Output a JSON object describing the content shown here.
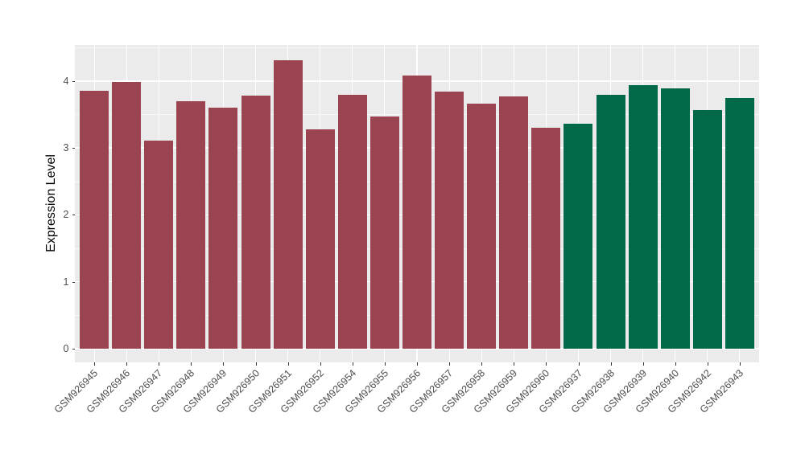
{
  "chart_data": {
    "type": "bar",
    "title": "",
    "xlabel": "",
    "ylabel": "Expression Level",
    "categories": [
      "GSM926945",
      "GSM926946",
      "GSM926947",
      "GSM926948",
      "GSM926949",
      "GSM926950",
      "GSM926951",
      "GSM926952",
      "GSM926954",
      "GSM926955",
      "GSM926956",
      "GSM926957",
      "GSM926958",
      "GSM926959",
      "GSM926960",
      "GSM926937",
      "GSM926938",
      "GSM926939",
      "GSM926940",
      "GSM926942",
      "GSM926943"
    ],
    "values": [
      3.85,
      3.98,
      3.11,
      3.7,
      3.6,
      3.78,
      4.31,
      3.28,
      3.79,
      3.47,
      4.08,
      3.84,
      3.66,
      3.77,
      3.3,
      3.36,
      3.79,
      3.94,
      3.89,
      3.56,
      3.74
    ],
    "bar_groups": [
      "maroon",
      "maroon",
      "maroon",
      "maroon",
      "maroon",
      "maroon",
      "maroon",
      "maroon",
      "maroon",
      "maroon",
      "maroon",
      "maroon",
      "maroon",
      "maroon",
      "maroon",
      "green",
      "green",
      "green",
      "green",
      "green",
      "green"
    ],
    "palette": {
      "maroon": "#9B4451",
      "green": "#016849"
    },
    "yticks": [
      0,
      1,
      2,
      3,
      4
    ],
    "yticks_minor": [
      0.5,
      1.5,
      2.5,
      3.5,
      4.5
    ],
    "ylim": [
      -0.22,
      4.54
    ],
    "bar_rel_width": 0.9,
    "grid": true,
    "legend_position": "none",
    "panel_background": "#EBEBEB",
    "grid_color": "#FFFFFF",
    "axis_text_color": "#4D4D4D",
    "tick_color": "#333333"
  }
}
